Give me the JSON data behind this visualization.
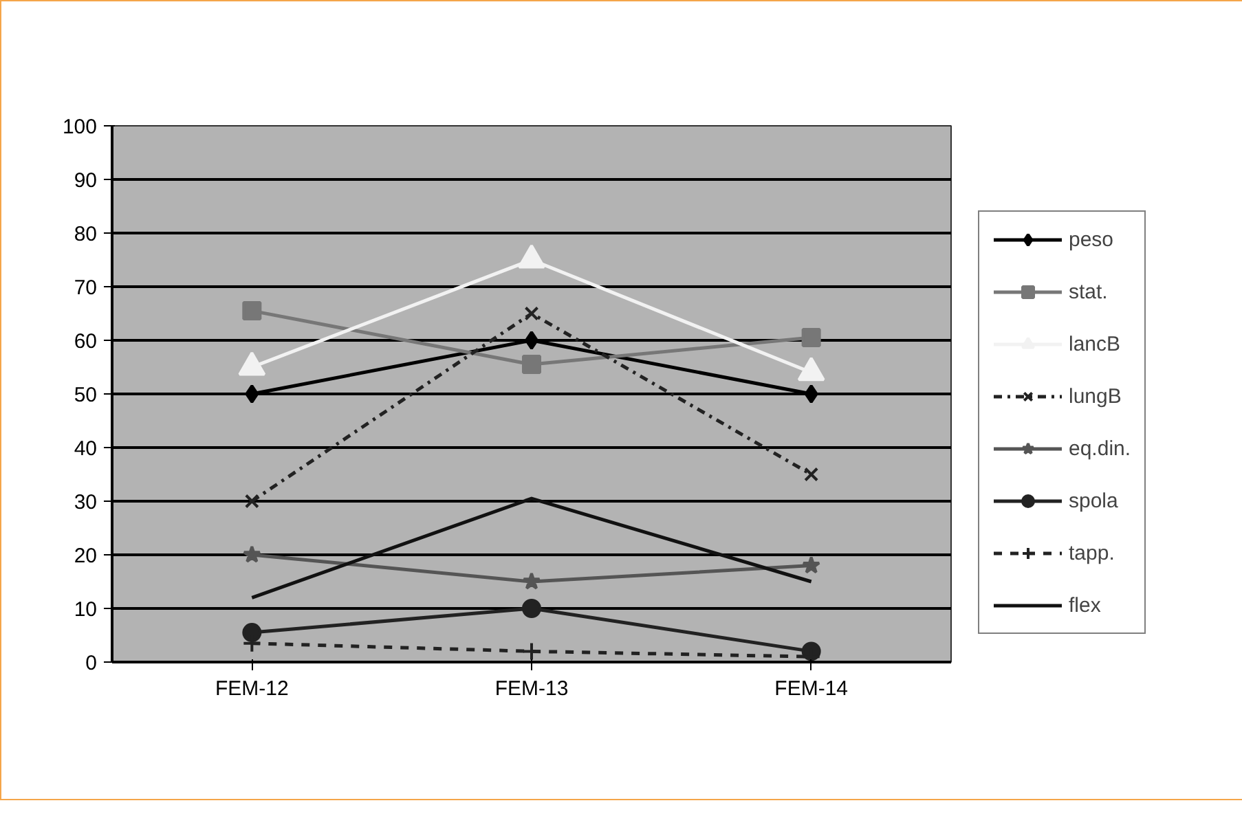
{
  "chart_data": {
    "type": "line",
    "categories": [
      "FEM-12",
      "FEM-13",
      "FEM-14"
    ],
    "ylim": [
      0,
      100
    ],
    "yticks": [
      0,
      10,
      20,
      30,
      40,
      50,
      60,
      70,
      80,
      90,
      100
    ],
    "grid": "y",
    "legend": "right",
    "series": [
      {
        "name": "peso",
        "color": "#000000",
        "values": [
          50,
          60,
          50
        ],
        "marker": "diamond",
        "line_style": "solid"
      },
      {
        "name": "stat.",
        "color": "#777777",
        "values": [
          65.5,
          55.5,
          60.5
        ],
        "marker": "square",
        "line_style": "solid"
      },
      {
        "name": "lancB",
        "color": "#f2f2f2",
        "values": [
          55,
          75,
          54
        ],
        "marker": "triangle",
        "line_style": "solid"
      },
      {
        "name": "lungB",
        "color": "#222222",
        "values": [
          30,
          65,
          35
        ],
        "marker": "cross",
        "line_style": "dashdot"
      },
      {
        "name": "eq.din.",
        "color": "#555555",
        "values": [
          20,
          15,
          18
        ],
        "marker": "star",
        "line_style": "solid"
      },
      {
        "name": "spola",
        "color": "#222222",
        "values": [
          5.5,
          10,
          2
        ],
        "marker": "circle",
        "line_style": "solid"
      },
      {
        "name": "tapp.",
        "color": "#222222",
        "values": [
          3.5,
          2,
          1
        ],
        "marker": "cross",
        "line_style": "dashed"
      },
      {
        "name": "flex",
        "color": "#111111",
        "values": [
          12,
          30.5,
          15
        ],
        "marker": "none",
        "line_style": "solid"
      }
    ]
  }
}
